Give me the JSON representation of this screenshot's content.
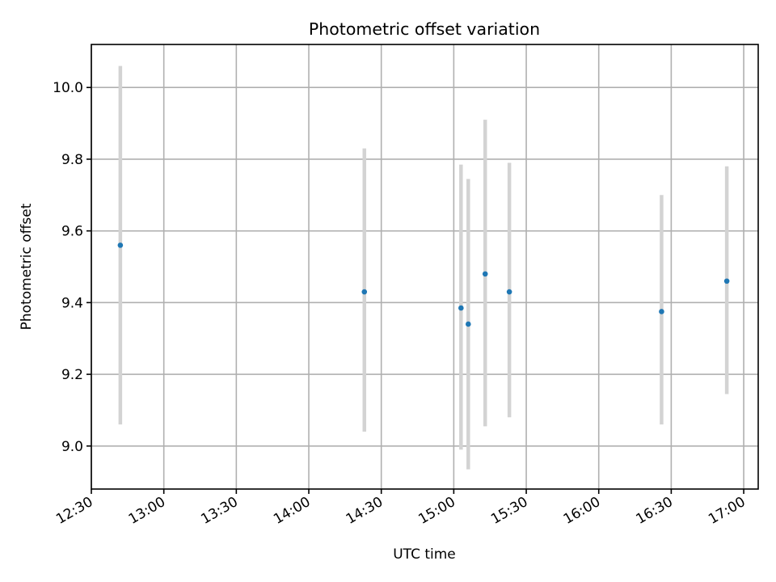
{
  "chart_data": {
    "type": "scatter",
    "title": "Photometric offset variation",
    "xlabel": "UTC time",
    "ylabel": "Photometric offset",
    "x_ticks": [
      "12:30",
      "13:00",
      "13:30",
      "14:00",
      "14:30",
      "15:00",
      "15:30",
      "16:00",
      "16:30",
      "17:00"
    ],
    "y_ticks": [
      "9.0",
      "9.2",
      "9.4",
      "9.6",
      "9.8",
      "10.0"
    ],
    "xlim": [
      "12:30",
      "17:06"
    ],
    "ylim": [
      8.88,
      10.12
    ],
    "grid": true,
    "series": [
      {
        "x": [
          "12:42",
          "14:23",
          "15:03",
          "15:06",
          "15:13",
          "15:23",
          "16:26",
          "16:53"
        ],
        "y": [
          9.56,
          9.43,
          9.385,
          9.34,
          9.48,
          9.43,
          9.375,
          9.46
        ],
        "error_bars": [
          [
            9.06,
            10.06
          ],
          [
            9.04,
            9.83
          ],
          [
            8.99,
            9.785
          ],
          [
            8.935,
            9.745
          ],
          [
            9.055,
            9.91
          ],
          [
            9.08,
            9.79
          ],
          [
            9.06,
            9.7
          ],
          [
            9.145,
            9.78
          ]
        ]
      }
    ],
    "colors": {
      "points": "#1f77b4",
      "error_bars": "#d3d3d3",
      "grid": "#b0b0b0"
    }
  }
}
